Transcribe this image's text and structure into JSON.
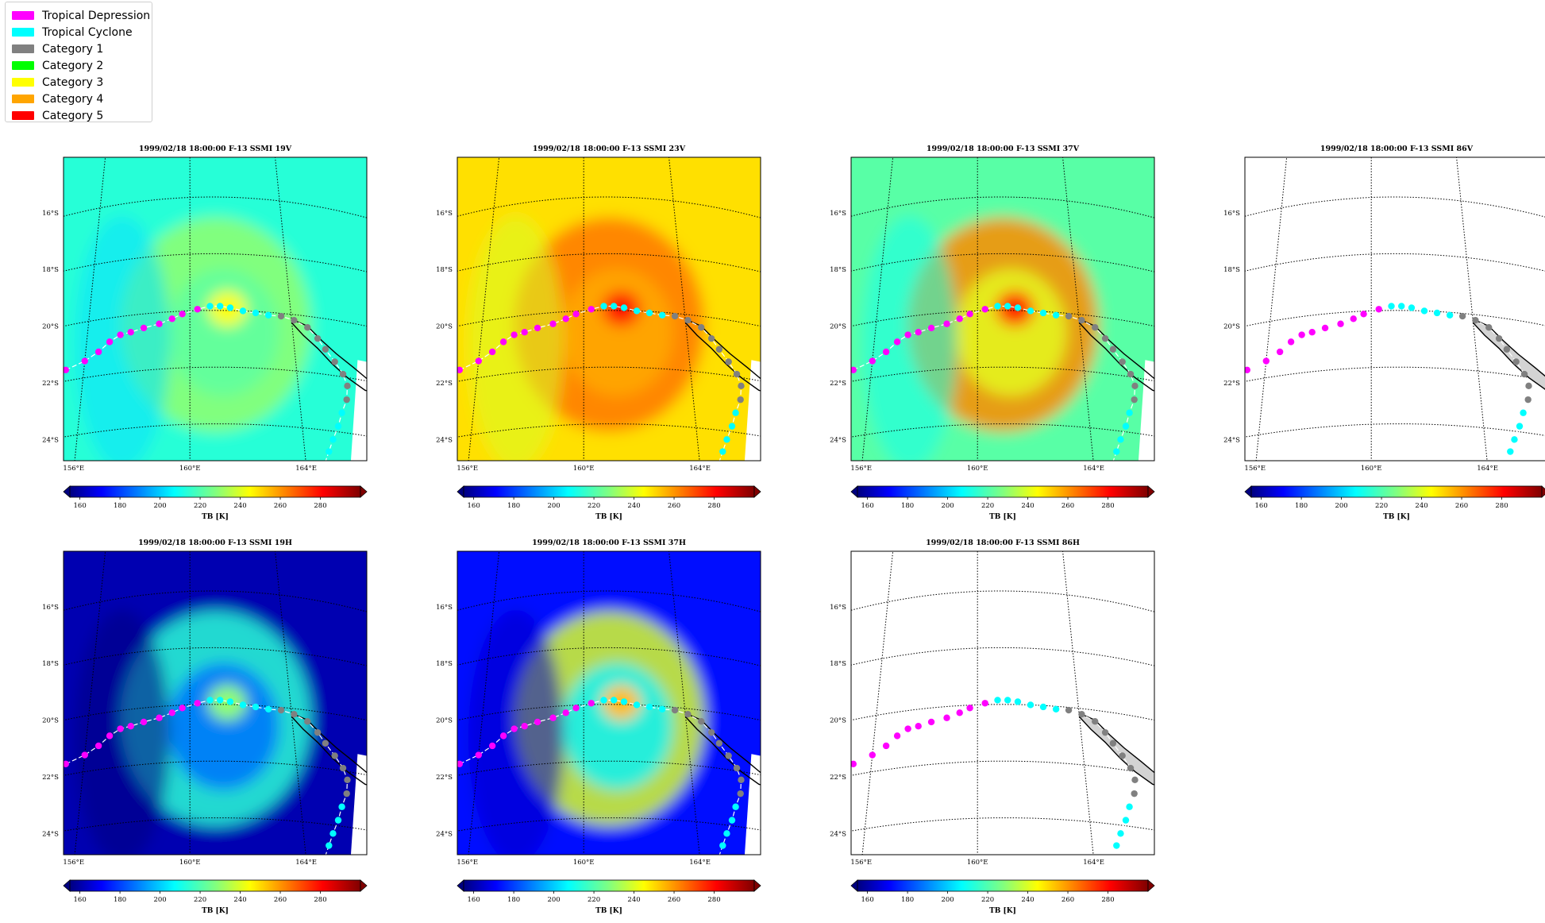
{
  "legend": {
    "items": [
      {
        "label": "Tropical Depression",
        "color": "#ff00ff"
      },
      {
        "label": "Tropical Cyclone",
        "color": "#00ffff"
      },
      {
        "label": "Category 1",
        "color": "#808080"
      },
      {
        "label": "Category 2",
        "color": "#00ff00"
      },
      {
        "label": "Category 3",
        "color": "#ffff00"
      },
      {
        "label": "Category 4",
        "color": "#ffa500"
      },
      {
        "label": "Category 5",
        "color": "#ff0000"
      }
    ]
  },
  "chart_data": [
    {
      "type": "heatmap",
      "title": "1999/02/18 18:00:00  F-13 SSMI 19V",
      "channel": "19V",
      "base_tb": 215,
      "ring_tb": 230,
      "has_data": true,
      "colorbar_label": "TB [K]"
    },
    {
      "type": "heatmap",
      "title": "1999/02/18 18:00:00  F-13 SSMI 23V",
      "channel": "23V",
      "base_tb": 250,
      "ring_tb": 265,
      "has_data": true,
      "colorbar_label": "TB [K]"
    },
    {
      "type": "heatmap",
      "title": "1999/02/18 18:00:00  F-13 SSMI 37V",
      "channel": "37V",
      "base_tb": 222,
      "ring_tb": 262,
      "has_data": true,
      "colorbar_label": "TB [K]"
    },
    {
      "type": "heatmap",
      "title": "1999/02/18 18:00:00  F-13 SSMI 86V",
      "channel": "86V",
      "has_data": false,
      "colorbar_label": "TB [K]"
    },
    {
      "type": "heatmap",
      "title": "1999/02/18 18:00:00  F-13 SSMI 19H",
      "channel": "19H",
      "base_tb": 162,
      "ring_tb": 215,
      "has_data": true,
      "colorbar_label": "TB [K]"
    },
    {
      "type": "heatmap",
      "title": "1999/02/18 18:00:00  F-13 SSMI 37H",
      "channel": "37H",
      "base_tb": 175,
      "ring_tb": 240,
      "has_data": true,
      "colorbar_label": "TB [K]"
    },
    {
      "type": "heatmap",
      "title": "1999/02/18 18:00:00  F-13 SSMI 86H",
      "channel": "86H",
      "has_data": false,
      "colorbar_label": "TB [K]"
    }
  ],
  "map": {
    "lat_ticks": [
      "16°S",
      "18°S",
      "20°S",
      "22°S",
      "24°S"
    ],
    "lat_values": [
      -16,
      -18,
      -20,
      -22,
      -24
    ],
    "lon_ticks": [
      "156°E",
      "160°E",
      "164°E"
    ],
    "lon_values": [
      156,
      160,
      164
    ],
    "lon_range": [
      155,
      167
    ],
    "lat_range": [
      -25.3,
      -14.6
    ]
  },
  "colorbar": {
    "ticks": [
      "160",
      "180",
      "200",
      "220",
      "240",
      "260",
      "280"
    ],
    "tick_values": [
      160,
      180,
      200,
      220,
      240,
      260,
      280
    ],
    "vmin": 155,
    "vmax": 300
  },
  "track": [
    {
      "lon": 155.3,
      "lat": -21.6,
      "cat": "TD"
    },
    {
      "lon": 156.0,
      "lat": -21.4,
      "cat": "TD"
    },
    {
      "lon": 156.5,
      "lat": -21.15,
      "cat": "TD"
    },
    {
      "lon": 156.9,
      "lat": -20.85,
      "cat": "TD"
    },
    {
      "lon": 157.3,
      "lat": -20.65,
      "cat": "TD"
    },
    {
      "lon": 157.7,
      "lat": -20.6,
      "cat": "TD"
    },
    {
      "lon": 158.2,
      "lat": -20.5,
      "cat": "TD"
    },
    {
      "lon": 158.8,
      "lat": -20.4,
      "cat": "TD"
    },
    {
      "lon": 159.3,
      "lat": -20.25,
      "cat": "TD"
    },
    {
      "lon": 159.7,
      "lat": -20.1,
      "cat": "TD"
    },
    {
      "lon": 160.3,
      "lat": -19.95,
      "cat": "TD"
    },
    {
      "lon": 160.8,
      "lat": -19.85,
      "cat": "TC"
    },
    {
      "lon": 161.2,
      "lat": -19.85,
      "cat": "TC"
    },
    {
      "lon": 161.6,
      "lat": -19.9,
      "cat": "TC"
    },
    {
      "lon": 162.1,
      "lat": -20.0,
      "cat": "TC"
    },
    {
      "lon": 162.6,
      "lat": -20.05,
      "cat": "TC"
    },
    {
      "lon": 163.1,
      "lat": -20.1,
      "cat": "TC"
    },
    {
      "lon": 163.6,
      "lat": -20.1,
      "cat": "C1"
    },
    {
      "lon": 164.1,
      "lat": -20.2,
      "cat": "C1"
    },
    {
      "lon": 164.6,
      "lat": -20.4,
      "cat": "C1"
    },
    {
      "lon": 164.95,
      "lat": -20.75,
      "cat": "C1"
    },
    {
      "lon": 165.2,
      "lat": -21.1,
      "cat": "C1"
    },
    {
      "lon": 165.5,
      "lat": -21.5,
      "cat": "C1"
    },
    {
      "lon": 165.75,
      "lat": -21.9,
      "cat": "C1"
    },
    {
      "lon": 165.85,
      "lat": -22.3,
      "cat": "C1"
    },
    {
      "lon": 165.75,
      "lat": -22.8,
      "cat": "C1"
    },
    {
      "lon": 165.5,
      "lat": -23.3,
      "cat": "TC"
    },
    {
      "lon": 165.3,
      "lat": -23.8,
      "cat": "TC"
    },
    {
      "lon": 165.05,
      "lat": -24.3,
      "cat": "TC"
    },
    {
      "lon": 164.85,
      "lat": -24.75,
      "cat": "TC"
    },
    {
      "lon": 164.65,
      "lat": -25.2,
      "cat": "TC"
    }
  ]
}
